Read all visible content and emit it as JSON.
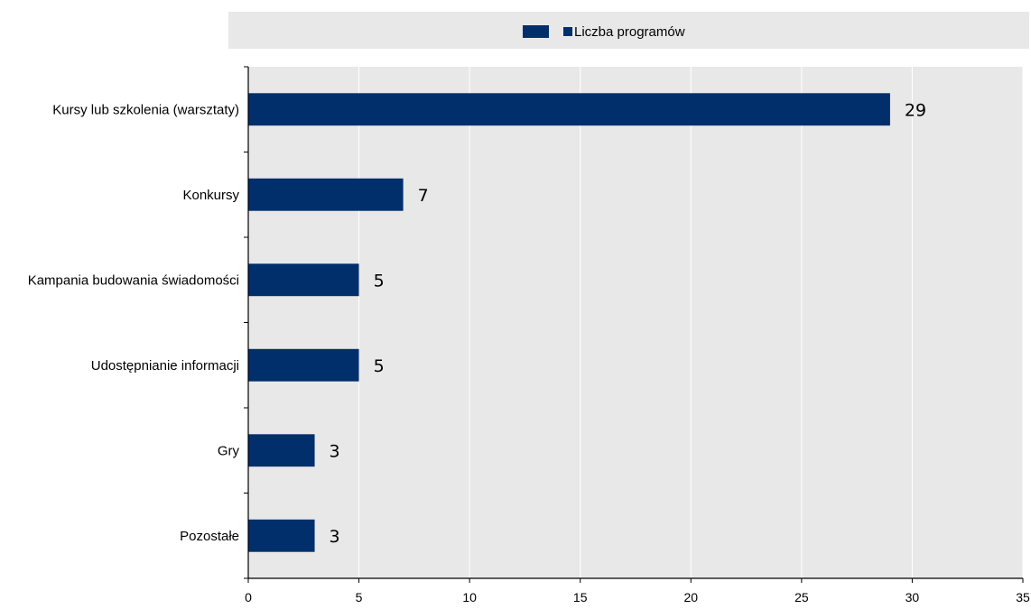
{
  "chart_data": {
    "type": "bar",
    "orientation": "horizontal",
    "categories": [
      "Kursy lub szkolenia (warsztaty)",
      "Konkursy",
      "Kampania budowania świadomości",
      "Udostępnianie informacji",
      "Gry",
      "Pozostałe"
    ],
    "series": [
      {
        "name": "Liczba programów",
        "values": [
          29,
          7,
          5,
          5,
          3,
          3
        ],
        "color": "#002F6C"
      }
    ],
    "xticks": [
      0,
      5,
      10,
      15,
      20,
      25,
      30,
      35
    ],
    "xlim": [
      0,
      35
    ],
    "grid": true,
    "legend_position": "top",
    "title": "",
    "xlabel": "",
    "ylabel": ""
  },
  "colors": {
    "bar": "#002F6C",
    "plot_background": "#E8E8E8",
    "legend_background": "#E8E8E8",
    "grid": "#FFFFFF",
    "axis": "#000000"
  }
}
